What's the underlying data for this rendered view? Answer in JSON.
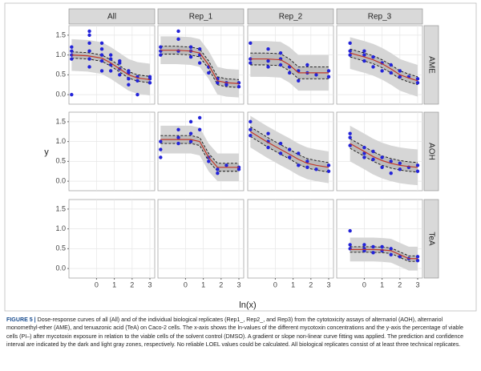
{
  "chart_data": {
    "type": "facet-scatter",
    "x_label": "ln(x)",
    "y_label": "y",
    "columns": [
      "All",
      "Rep_1",
      "Rep_2",
      "Rep_3"
    ],
    "rows": [
      "AME",
      "AOH",
      "TeA"
    ],
    "xlim": [
      -1.55,
      3.27
    ],
    "xticks": [
      0,
      1,
      2,
      3
    ],
    "ylim": [
      -0.24,
      1.74
    ],
    "yticks": [
      {
        "value": 0,
        "label": "0.0"
      },
      0.5,
      {
        "value": 1,
        "label": "1.0"
      },
      1.5
    ],
    "grid": true,
    "point_color": "#2323d9",
    "fit_color": "#c0392b",
    "pred_color": "#d6d6d6",
    "conf_color": "#bcbcbc",
    "panels": [
      [
        {
          "x": [
            -1.4,
            -1.4,
            -1.4,
            -1.4,
            -1.4,
            -0.4,
            -0.4,
            -0.4,
            -0.4,
            -0.4,
            -0.4,
            0.3,
            0.3,
            0.3,
            0.3,
            0.3,
            0.8,
            0.8,
            0.8,
            0.8,
            1.3,
            1.3,
            1.3,
            1.3,
            1.8,
            1.8,
            1.8,
            1.8,
            2.3,
            2.3,
            2.3,
            3.0,
            3.0,
            3.0
          ],
          "y": [
            0.0,
            1.0,
            0.9,
            1.2,
            1.1,
            1.5,
            1.6,
            1.3,
            0.9,
            0.7,
            1.1,
            1.15,
            1.0,
            0.85,
            0.6,
            1.3,
            0.9,
            0.75,
            0.6,
            1.0,
            0.8,
            0.5,
            0.65,
            0.85,
            0.6,
            0.4,
            0.55,
            0.25,
            0.45,
            0.35,
            0.0,
            0.4,
            0.3,
            0.45
          ],
          "fit_x": [
            -1.4,
            -0.5,
            0.3,
            0.8,
            1.3,
            1.8,
            2.3,
            3.0
          ],
          "fit_y": [
            1.0,
            0.98,
            0.92,
            0.8,
            0.65,
            0.5,
            0.42,
            0.38
          ],
          "conf_lower": [
            0.92,
            0.9,
            0.84,
            0.72,
            0.57,
            0.42,
            0.34,
            0.3
          ],
          "conf_upper": [
            1.08,
            1.06,
            1.0,
            0.88,
            0.73,
            0.58,
            0.5,
            0.46
          ],
          "pred_lower": [
            0.6,
            0.58,
            0.52,
            0.4,
            0.25,
            0.1,
            0.02,
            -0.02
          ],
          "pred_upper": [
            1.4,
            1.38,
            1.32,
            1.2,
            1.05,
            0.9,
            0.82,
            0.78
          ]
        },
        {
          "x": [
            -1.4,
            -1.4,
            -1.4,
            -0.4,
            -0.4,
            -0.4,
            0.3,
            0.3,
            0.3,
            0.8,
            0.8,
            0.8,
            1.3,
            1.3,
            1.8,
            1.8,
            2.3,
            2.3,
            3.0,
            3.0
          ],
          "y": [
            1.1,
            1.0,
            1.2,
            1.4,
            1.6,
            1.1,
            1.2,
            0.95,
            1.1,
            1.0,
            0.8,
            1.15,
            0.7,
            0.55,
            0.3,
            0.4,
            0.3,
            0.25,
            0.3,
            0.2
          ],
          "fit_x": [
            -1.4,
            -0.5,
            0.3,
            0.8,
            1.3,
            1.8,
            2.3,
            3.0
          ],
          "fit_y": [
            1.12,
            1.12,
            1.1,
            1.05,
            0.75,
            0.35,
            0.3,
            0.28
          ],
          "conf_lower": [
            1.02,
            1.02,
            1.0,
            0.95,
            0.65,
            0.25,
            0.2,
            0.18
          ],
          "conf_upper": [
            1.22,
            1.22,
            1.2,
            1.15,
            0.85,
            0.45,
            0.4,
            0.38
          ],
          "pred_lower": [
            0.77,
            0.77,
            0.75,
            0.7,
            0.4,
            0.0,
            -0.05,
            -0.07
          ],
          "pred_upper": [
            1.47,
            1.47,
            1.45,
            1.4,
            1.1,
            0.7,
            0.65,
            0.63
          ]
        },
        {
          "x": [
            -1.4,
            -1.4,
            -1.4,
            -0.4,
            -0.4,
            -0.4,
            0.3,
            0.3,
            0.3,
            0.8,
            0.8,
            1.3,
            1.3,
            1.8,
            1.8,
            2.3,
            3.0,
            3.0
          ],
          "y": [
            1.3,
            0.9,
            0.8,
            1.15,
            0.85,
            0.7,
            1.05,
            0.75,
            0.9,
            0.7,
            0.55,
            0.35,
            0.6,
            0.55,
            0.75,
            0.5,
            0.6,
            0.45
          ],
          "fit_x": [
            -1.4,
            -0.5,
            0.3,
            0.8,
            1.3,
            1.8,
            2.3,
            3.0
          ],
          "fit_y": [
            0.9,
            0.9,
            0.88,
            0.75,
            0.55,
            0.55,
            0.55,
            0.55
          ],
          "conf_lower": [
            0.75,
            0.75,
            0.73,
            0.6,
            0.4,
            0.4,
            0.4,
            0.4
          ],
          "conf_upper": [
            1.05,
            1.05,
            1.03,
            0.9,
            0.7,
            0.7,
            0.7,
            0.7
          ],
          "pred_lower": [
            0.45,
            0.45,
            0.43,
            0.3,
            0.1,
            0.1,
            0.1,
            0.1
          ],
          "pred_upper": [
            1.35,
            1.35,
            1.33,
            1.2,
            1.0,
            1.0,
            1.0,
            1.0
          ]
        },
        {
          "x": [
            -0.8,
            -0.8,
            -0.8,
            0,
            0,
            0,
            0.5,
            0.5,
            1,
            1,
            1.5,
            1.5,
            2,
            2,
            2.5,
            3,
            3
          ],
          "y": [
            1.1,
            1.0,
            1.3,
            1.0,
            0.85,
            1.1,
            0.7,
            0.95,
            0.8,
            0.6,
            0.75,
            0.55,
            0.45,
            0.6,
            0.45,
            0.4,
            0.3
          ],
          "fit_x": [
            -0.8,
            0,
            0.5,
            1,
            1.5,
            2,
            2.5,
            3
          ],
          "fit_y": [
            1.05,
            0.95,
            0.88,
            0.78,
            0.65,
            0.5,
            0.42,
            0.35
          ],
          "conf_lower": [
            0.95,
            0.85,
            0.78,
            0.68,
            0.55,
            0.4,
            0.32,
            0.25
          ],
          "conf_upper": [
            1.15,
            1.05,
            0.98,
            0.88,
            0.75,
            0.6,
            0.52,
            0.45
          ],
          "pred_lower": [
            0.65,
            0.55,
            0.48,
            0.38,
            0.25,
            0.1,
            0.02,
            -0.05
          ],
          "pred_upper": [
            1.45,
            1.35,
            1.28,
            1.18,
            1.05,
            0.9,
            0.82,
            0.75
          ]
        }
      ],
      [
        null,
        {
          "x": [
            -1.4,
            -1.4,
            -1.4,
            -0.4,
            -0.4,
            -0.4,
            0.3,
            0.3,
            0.3,
            0.8,
            0.8,
            1.3,
            1.3,
            1.8,
            1.8,
            2.3,
            3.0,
            3.0
          ],
          "y": [
            0.6,
            0.8,
            1.0,
            1.3,
            0.95,
            1.1,
            1.5,
            1.2,
            1.0,
            1.6,
            1.3,
            0.6,
            0.5,
            0.2,
            0.3,
            0.4,
            0.35,
            0.3
          ],
          "fit_x": [
            -1.4,
            -0.5,
            0.3,
            0.8,
            1.3,
            1.8,
            2.3,
            3.0
          ],
          "fit_y": [
            1.05,
            1.05,
            1.05,
            1.0,
            0.6,
            0.35,
            0.35,
            0.35
          ],
          "conf_lower": [
            0.95,
            0.95,
            0.95,
            0.9,
            0.5,
            0.25,
            0.25,
            0.25
          ],
          "conf_upper": [
            1.15,
            1.15,
            1.15,
            1.1,
            0.7,
            0.45,
            0.45,
            0.45
          ],
          "pred_lower": [
            0.7,
            0.7,
            0.7,
            0.65,
            0.25,
            0.0,
            0.0,
            0.0
          ],
          "pred_upper": [
            1.4,
            1.4,
            1.4,
            1.35,
            0.95,
            0.7,
            0.7,
            0.7
          ]
        },
        {
          "x": [
            -1.4,
            -1.4,
            -1.4,
            -0.4,
            -0.4,
            -0.4,
            0.3,
            0.3,
            0.8,
            0.8,
            1.3,
            1.3,
            1.8,
            1.8,
            2.3,
            3.0,
            3.0
          ],
          "y": [
            1.5,
            1.3,
            1.15,
            1.0,
            0.85,
            1.2,
            0.95,
            0.7,
            0.6,
            0.8,
            0.7,
            0.4,
            0.35,
            0.5,
            0.3,
            0.4,
            0.25
          ],
          "fit_x": [
            -1.4,
            -0.5,
            0.3,
            0.8,
            1.3,
            1.8,
            2.3,
            3.0
          ],
          "fit_y": [
            1.25,
            1.0,
            0.8,
            0.68,
            0.55,
            0.45,
            0.4,
            0.35
          ],
          "conf_lower": [
            1.13,
            0.88,
            0.68,
            0.56,
            0.43,
            0.33,
            0.28,
            0.23
          ],
          "conf_upper": [
            1.37,
            1.12,
            0.92,
            0.8,
            0.67,
            0.57,
            0.52,
            0.47
          ],
          "pred_lower": [
            0.85,
            0.6,
            0.4,
            0.28,
            0.15,
            0.05,
            0.0,
            -0.05
          ],
          "pred_upper": [
            1.65,
            1.4,
            1.2,
            1.08,
            0.95,
            0.85,
            0.8,
            0.75
          ]
        },
        {
          "x": [
            -0.8,
            -0.8,
            -0.8,
            0,
            0,
            0,
            0.5,
            0.5,
            1,
            1,
            1.5,
            1.5,
            2,
            2,
            2.5,
            3,
            3
          ],
          "y": [
            1.2,
            1.1,
            0.9,
            0.85,
            0.7,
            0.6,
            0.75,
            0.55,
            0.6,
            0.35,
            0.5,
            0.2,
            0.45,
            0.3,
            0.35,
            0.4,
            0.25
          ],
          "fit_x": [
            -0.8,
            0,
            0.5,
            1,
            1.5,
            2,
            2.5,
            3
          ],
          "fit_y": [
            0.95,
            0.75,
            0.62,
            0.52,
            0.45,
            0.4,
            0.37,
            0.35
          ],
          "conf_lower": [
            0.83,
            0.63,
            0.5,
            0.4,
            0.33,
            0.28,
            0.25,
            0.23
          ],
          "conf_upper": [
            1.07,
            0.87,
            0.74,
            0.64,
            0.57,
            0.52,
            0.49,
            0.47
          ],
          "pred_lower": [
            0.5,
            0.3,
            0.17,
            0.07,
            0.0,
            -0.05,
            -0.08,
            -0.1
          ],
          "pred_upper": [
            1.4,
            1.2,
            1.07,
            0.97,
            0.9,
            0.85,
            0.82,
            0.8
          ]
        }
      ],
      [
        null,
        null,
        null,
        {
          "x": [
            -0.8,
            -0.8,
            -0.8,
            0,
            0,
            0,
            0.5,
            0.5,
            1,
            1,
            1.5,
            1.5,
            2,
            2.5,
            3,
            3
          ],
          "y": [
            0.95,
            0.5,
            0.6,
            0.45,
            0.6,
            0.5,
            0.4,
            0.55,
            0.45,
            0.55,
            0.5,
            0.35,
            0.3,
            0.25,
            0.3,
            0.2
          ],
          "fit_x": [
            -0.8,
            0,
            0.5,
            1,
            1.5,
            2,
            2.5,
            3
          ],
          "fit_y": [
            0.48,
            0.48,
            0.48,
            0.47,
            0.45,
            0.35,
            0.25,
            0.25
          ],
          "conf_lower": [
            0.41,
            0.41,
            0.41,
            0.4,
            0.38,
            0.28,
            0.18,
            0.18
          ],
          "conf_upper": [
            0.55,
            0.55,
            0.55,
            0.54,
            0.52,
            0.42,
            0.32,
            0.32
          ],
          "pred_lower": [
            0.18,
            0.18,
            0.18,
            0.17,
            0.15,
            0.05,
            -0.05,
            -0.05
          ],
          "pred_upper": [
            0.78,
            0.78,
            0.78,
            0.77,
            0.75,
            0.65,
            0.55,
            0.55
          ]
        }
      ]
    ]
  },
  "caption": {
    "label": "FIGURE 5 |",
    "text": "Dose-response curves of all (All) and of the individual biological replicates (Rep1_, Rep2_, and Rep3) from the cytotoxicity assays of alternariol (AOH), alternariol monomethyl-ether (AME), and tenuazonic acid (TeA) on Caco-2 cells. The x-axis shows the ln-values of the different mycotoxin concentrations and the y-axis the percentage of viable cells (PI–) after mycotoxin exposure in relation to the viable cells of the solvent control (DMSO). A gradient or slope non-linear curve fitting was applied. The prediction and confidence interval are indicated by the dark and light gray zones, respectively. No reliable LOEL values could be calculated. All biological replicates consist of at least three technical replicates."
  }
}
